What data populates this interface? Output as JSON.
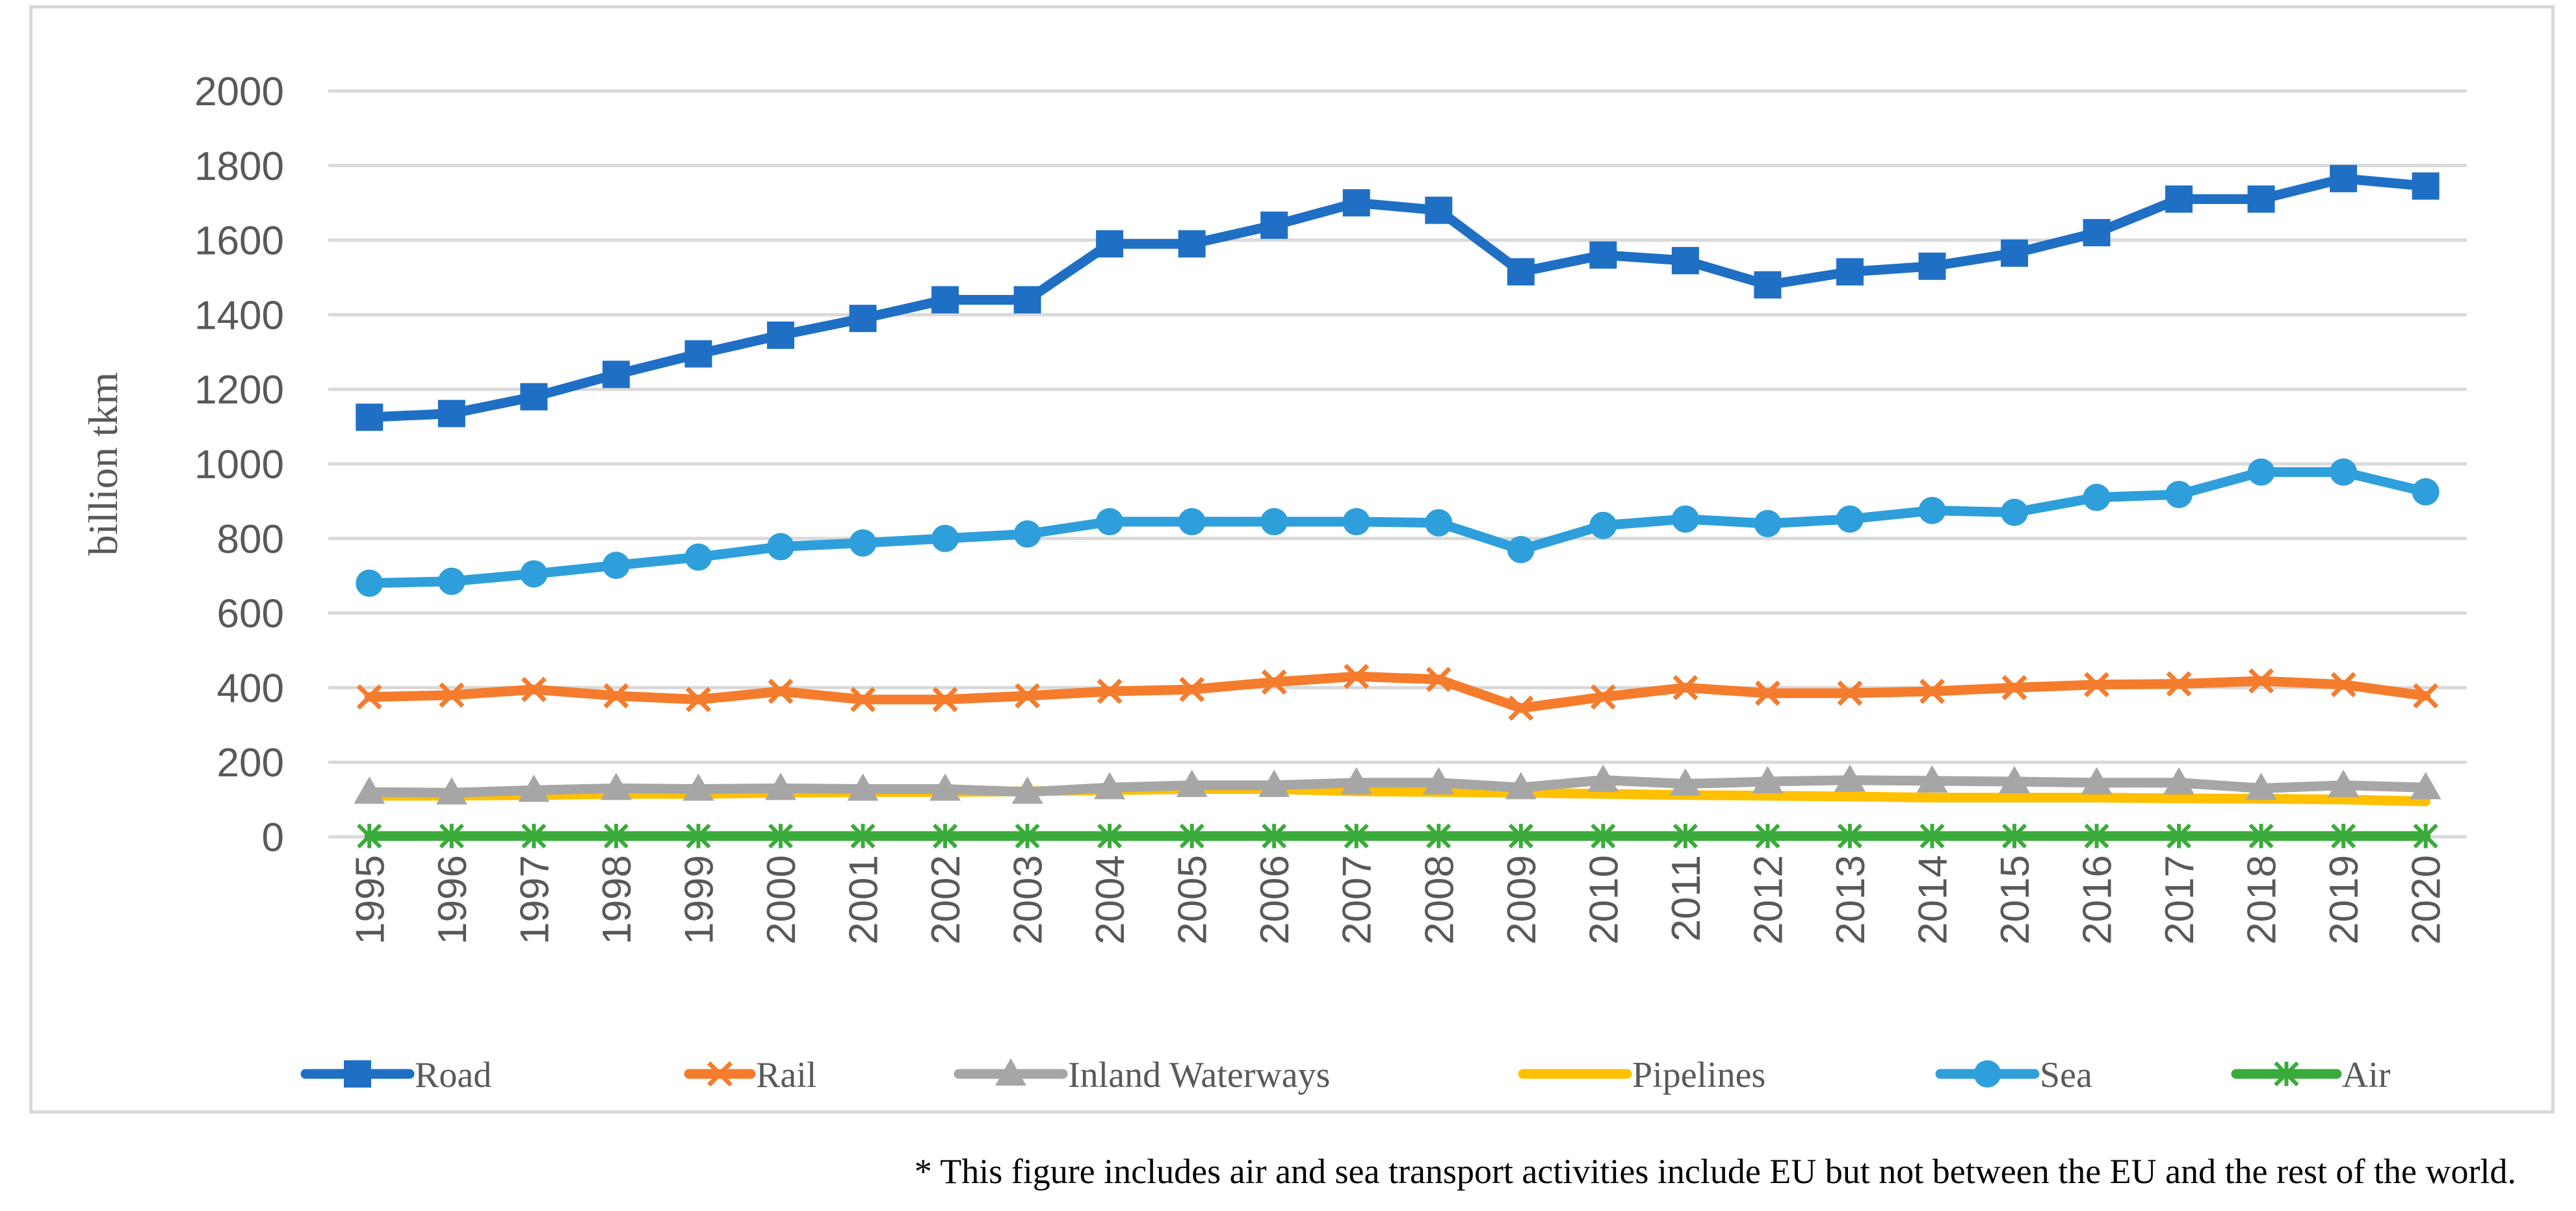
{
  "chart_data": {
    "type": "line",
    "title": "",
    "xlabel": "",
    "ylabel": "billion tkm",
    "ylim": [
      0,
      2000
    ],
    "yticks": [
      0,
      200,
      400,
      600,
      800,
      1000,
      1200,
      1400,
      1600,
      1800,
      2000
    ],
    "grid": true,
    "legend_position": "bottom",
    "categories": [
      "1995",
      "1996",
      "1997",
      "1998",
      "1999",
      "2000",
      "2001",
      "2002",
      "2003",
      "2004",
      "2005",
      "2006",
      "2007",
      "2008",
      "2009",
      "2010",
      "2011",
      "2012",
      "2013",
      "2014",
      "2015",
      "2016",
      "2017",
      "2018",
      "2019",
      "2020"
    ],
    "series": [
      {
        "name": "Road",
        "color": "#1f6fc5",
        "marker": "square",
        "values": [
          1125,
          1135,
          1180,
          1240,
          1295,
          1345,
          1390,
          1440,
          1440,
          1590,
          1590,
          1640,
          1700,
          1680,
          1515,
          1560,
          1545,
          1480,
          1515,
          1530,
          1565,
          1620,
          1710,
          1710,
          1765,
          1745
        ]
      },
      {
        "name": "Rail",
        "color": "#f47c2c",
        "marker": "x",
        "values": [
          375,
          380,
          395,
          378,
          368,
          390,
          368,
          368,
          378,
          390,
          395,
          415,
          430,
          422,
          345,
          375,
          400,
          385,
          385,
          390,
          400,
          408,
          410,
          418,
          408,
          378
        ]
      },
      {
        "name": "Inland Waterways",
        "color": "#a6a6a6",
        "marker": "triangle",
        "values": [
          120,
          118,
          125,
          130,
          128,
          130,
          128,
          128,
          120,
          132,
          138,
          138,
          145,
          145,
          132,
          152,
          142,
          148,
          152,
          150,
          148,
          145,
          145,
          130,
          138,
          132
        ]
      },
      {
        "name": "Pipelines",
        "color": "#ffc000",
        "marker": "none",
        "values": [
          110,
          110,
          112,
          115,
          115,
          118,
          120,
          120,
          122,
          125,
          128,
          128,
          122,
          120,
          118,
          115,
          112,
          110,
          108,
          105,
          105,
          105,
          103,
          102,
          100,
          95
        ]
      },
      {
        "name": "Sea",
        "color": "#2e9fdb",
        "marker": "circle",
        "values": [
          680,
          685,
          705,
          728,
          750,
          778,
          788,
          800,
          812,
          845,
          845,
          845,
          845,
          842,
          770,
          835,
          852,
          840,
          852,
          875,
          870,
          910,
          918,
          978,
          978,
          925
        ]
      },
      {
        "name": "Air",
        "color": "#3aab3a",
        "marker": "star",
        "values": [
          2,
          2,
          2,
          2,
          2,
          2,
          2,
          2,
          2,
          2,
          2,
          2,
          2,
          2,
          2,
          2,
          2,
          2,
          2,
          2,
          2,
          2,
          2,
          2,
          2,
          2
        ]
      }
    ]
  },
  "footnote": "* This figure includes air and sea transport activities include EU but not between the EU and the rest of the world."
}
